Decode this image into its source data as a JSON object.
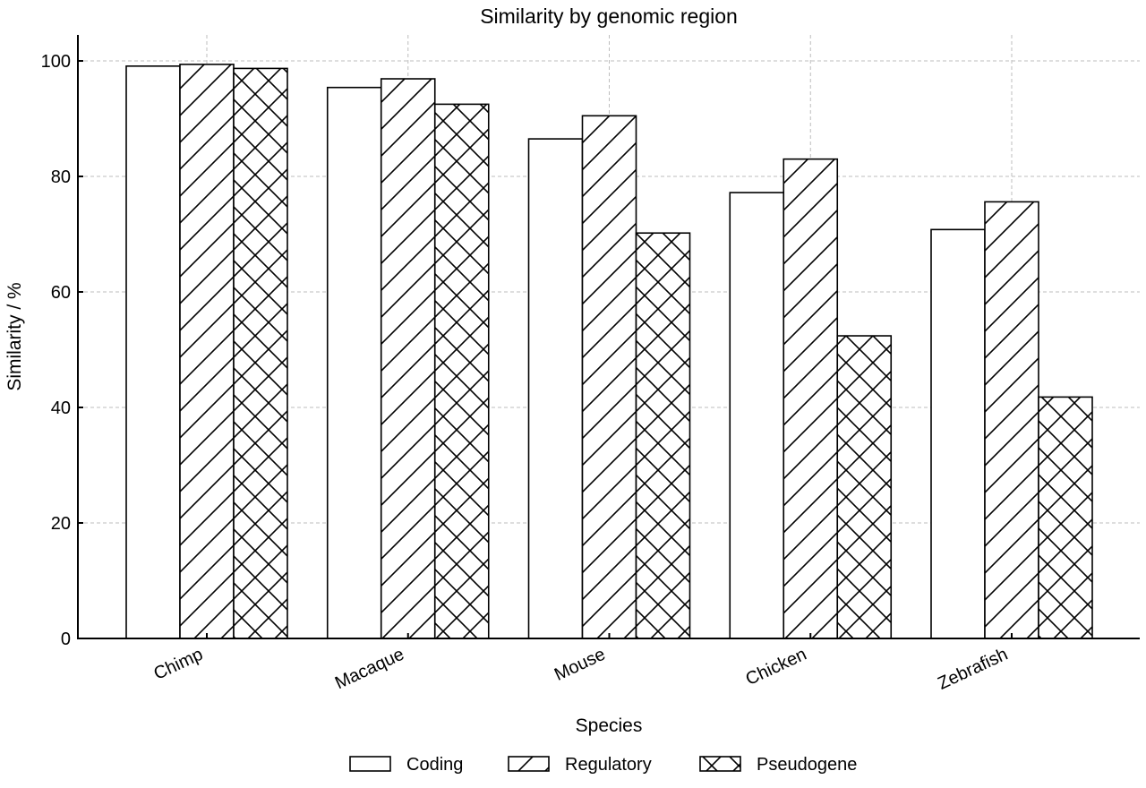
{
  "chart_data": {
    "type": "bar",
    "title": "Similarity by genomic region",
    "xlabel": "Species",
    "ylabel": "Similarity / %",
    "categories": [
      "Chimp",
      "Macaque",
      "Mouse",
      "Chicken",
      "Zebrafish"
    ],
    "series": [
      {
        "name": "Coding",
        "pattern": "none",
        "values": [
          99.1,
          95.4,
          86.5,
          77.2,
          70.8
        ]
      },
      {
        "name": "Regulatory",
        "pattern": "diagonal",
        "values": [
          99.4,
          96.9,
          90.5,
          83.0,
          75.6
        ]
      },
      {
        "name": "Pseudogene",
        "pattern": "crosshatch",
        "values": [
          98.7,
          92.5,
          70.2,
          52.4,
          41.8
        ]
      }
    ],
    "ylim": [
      0,
      104.5
    ],
    "yticks": [
      0,
      20,
      40,
      60,
      80,
      100
    ],
    "grid": true,
    "legend_position": "bottom-center",
    "colors": {
      "bar_fill": "#ffffff",
      "bar_edge": "#000000",
      "grid": "#bdbdbd"
    }
  }
}
